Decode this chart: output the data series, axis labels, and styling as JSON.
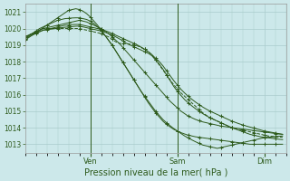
{
  "xlabel": "Pression niveau de la mer( hPa )",
  "bg_color": "#cce8ea",
  "grid_color": "#aacccc",
  "line_color": "#2d5a1b",
  "ylim": [
    1012.5,
    1021.5
  ],
  "yticks": [
    1013,
    1014,
    1015,
    1016,
    1017,
    1018,
    1019,
    1020,
    1021
  ],
  "xlim": [
    0,
    72
  ],
  "ven_x": 18,
  "sam_x": 42,
  "dim_x": 66,
  "series": [
    {
      "data": [
        1019.5,
        1019.6,
        1019.7,
        1019.8,
        1019.9,
        1020.0,
        1020.05,
        1020.1,
        1020.15,
        1020.2,
        1020.25,
        1020.3,
        1020.35,
        1020.4,
        1020.45,
        1020.5,
        1020.45,
        1020.4,
        1020.3,
        1020.2,
        1020.1,
        1020.0,
        1019.85,
        1019.7,
        1019.5,
        1019.3,
        1019.1,
        1018.85,
        1018.6,
        1018.35,
        1018.1,
        1017.85,
        1017.6,
        1017.35,
        1017.1,
        1016.85,
        1016.6,
        1016.35,
        1016.1,
        1015.85,
        1015.6,
        1015.4,
        1015.2,
        1015.0,
        1014.85,
        1014.7,
        1014.6,
        1014.5,
        1014.42,
        1014.35,
        1014.3,
        1014.25,
        1014.2,
        1014.15,
        1014.1,
        1014.07,
        1014.04,
        1014.01,
        1013.98,
        1013.95,
        1013.92,
        1013.89,
        1013.86,
        1013.83,
        1013.8,
        1013.77,
        1013.74,
        1013.71,
        1013.68,
        1013.65,
        1013.62,
        1013.6
      ],
      "dashed": false
    },
    {
      "data": [
        1019.4,
        1019.55,
        1019.7,
        1019.85,
        1020.0,
        1020.1,
        1020.2,
        1020.3,
        1020.4,
        1020.5,
        1020.55,
        1020.6,
        1020.62,
        1020.64,
        1020.65,
        1020.65,
        1020.6,
        1020.55,
        1020.45,
        1020.3,
        1020.1,
        1019.85,
        1019.6,
        1019.3,
        1019.0,
        1018.65,
        1018.3,
        1017.95,
        1017.6,
        1017.25,
        1016.9,
        1016.55,
        1016.2,
        1015.85,
        1015.5,
        1015.2,
        1014.9,
        1014.65,
        1014.4,
        1014.2,
        1014.05,
        1013.9,
        1013.8,
        1013.7,
        1013.62,
        1013.55,
        1013.5,
        1013.45,
        1013.42,
        1013.39,
        1013.36,
        1013.33,
        1013.3,
        1013.27,
        1013.24,
        1013.21,
        1013.18,
        1013.15,
        1013.12,
        1013.09,
        1013.06,
        1013.03,
        1013.0,
        1013.0,
        1013.0,
        1013.0,
        1013.0,
        1013.0,
        1013.0,
        1013.0,
        1013.0,
        1013.0
      ],
      "dashed": false
    },
    {
      "data": [
        1019.3,
        1019.45,
        1019.6,
        1019.75,
        1019.9,
        1020.05,
        1020.2,
        1020.35,
        1020.5,
        1020.65,
        1020.8,
        1020.95,
        1021.1,
        1021.15,
        1021.2,
        1021.15,
        1021.05,
        1020.9,
        1020.7,
        1020.45,
        1020.2,
        1019.9,
        1019.6,
        1019.3,
        1019.0,
        1018.65,
        1018.3,
        1017.95,
        1017.6,
        1017.25,
        1016.9,
        1016.55,
        1016.2,
        1015.9,
        1015.6,
        1015.3,
        1015.0,
        1014.75,
        1014.5,
        1014.3,
        1014.12,
        1013.95,
        1013.8,
        1013.65,
        1013.5,
        1013.38,
        1013.26,
        1013.15,
        1013.05,
        1012.95,
        1012.9,
        1012.85,
        1012.8,
        1012.75,
        1012.8,
        1012.85,
        1012.9,
        1012.95,
        1013.0,
        1013.05,
        1013.1,
        1013.15,
        1013.2,
        1013.25,
        1013.3,
        1013.35,
        1013.4,
        1013.42,
        1013.44,
        1013.46,
        1013.48,
        1013.5
      ],
      "dashed": false
    },
    {
      "data": [
        1019.5,
        1019.6,
        1019.7,
        1019.8,
        1019.9,
        1020.0,
        1020.0,
        1020.0,
        1020.0,
        1020.0,
        1020.0,
        1020.0,
        1020.0,
        1020.0,
        1020.0,
        1020.0,
        1019.95,
        1019.9,
        1019.85,
        1019.8,
        1019.75,
        1019.7,
        1019.6,
        1019.5,
        1019.35,
        1019.2,
        1019.1,
        1019.1,
        1019.1,
        1019.05,
        1019.0,
        1018.95,
        1018.85,
        1018.75,
        1018.6,
        1018.4,
        1018.1,
        1017.8,
        1017.5,
        1017.2,
        1016.9,
        1016.6,
        1016.35,
        1016.1,
        1015.9,
        1015.7,
        1015.5,
        1015.3,
        1015.1,
        1014.9,
        1014.75,
        1014.6,
        1014.5,
        1014.4,
        1014.3,
        1014.2,
        1014.1,
        1014.0,
        1013.95,
        1013.9,
        1013.85,
        1013.8,
        1013.75,
        1013.7,
        1013.65,
        1013.6,
        1013.55,
        1013.5,
        1013.48,
        1013.46,
        1013.44,
        1013.42
      ],
      "dashed": true
    },
    {
      "data": [
        1019.5,
        1019.58,
        1019.66,
        1019.74,
        1019.82,
        1019.9,
        1019.93,
        1019.96,
        1019.99,
        1020.02,
        1020.05,
        1020.08,
        1020.1,
        1020.12,
        1020.14,
        1020.15,
        1020.1,
        1020.05,
        1020.0,
        1019.95,
        1019.9,
        1019.85,
        1019.78,
        1019.7,
        1019.6,
        1019.5,
        1019.38,
        1019.25,
        1019.1,
        1019.0,
        1018.9,
        1018.8,
        1018.7,
        1018.6,
        1018.5,
        1018.35,
        1018.1,
        1017.85,
        1017.55,
        1017.2,
        1016.85,
        1016.5,
        1016.2,
        1015.95,
        1015.7,
        1015.5,
        1015.32,
        1015.15,
        1015.0,
        1014.85,
        1014.72,
        1014.6,
        1014.5,
        1014.4,
        1014.3,
        1014.2,
        1014.1,
        1014.0,
        1013.92,
        1013.84,
        1013.76,
        1013.68,
        1013.6,
        1013.55,
        1013.5,
        1013.45,
        1013.42,
        1013.39,
        1013.36,
        1013.33,
        1013.3,
        1013.28
      ],
      "dashed": false
    },
    {
      "data": [
        1019.4,
        1019.5,
        1019.6,
        1019.7,
        1019.8,
        1019.9,
        1019.95,
        1020.0,
        1020.05,
        1020.1,
        1020.15,
        1020.2,
        1020.22,
        1020.24,
        1020.25,
        1020.25,
        1020.2,
        1020.15,
        1020.1,
        1020.05,
        1020.0,
        1019.95,
        1019.88,
        1019.8,
        1019.7,
        1019.6,
        1019.5,
        1019.4,
        1019.3,
        1019.2,
        1019.1,
        1019.0,
        1018.88,
        1018.75,
        1018.6,
        1018.42,
        1018.2,
        1018.0,
        1017.75,
        1017.45,
        1017.15,
        1016.85,
        1016.58,
        1016.32,
        1016.1,
        1015.9,
        1015.72,
        1015.55,
        1015.4,
        1015.25,
        1015.12,
        1015.0,
        1014.9,
        1014.8,
        1014.7,
        1014.6,
        1014.5,
        1014.4,
        1014.32,
        1014.24,
        1014.17,
        1014.1,
        1014.04,
        1013.98,
        1013.92,
        1013.86,
        1013.8,
        1013.76,
        1013.72,
        1013.68,
        1013.64,
        1013.6
      ],
      "dashed": false
    }
  ]
}
